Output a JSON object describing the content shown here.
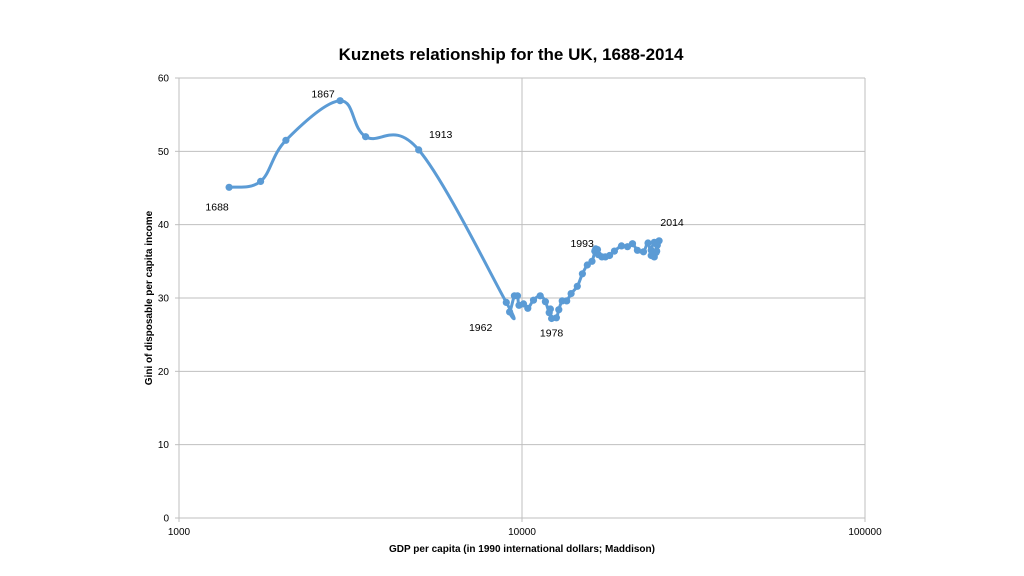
{
  "chart_data": {
    "type": "scatter",
    "title": "Kuznets relationship for the UK, 1688-2014",
    "xlabel": "GDP per capita (in 1990 international dollars; Maddison)",
    "ylabel": "Gini of disposable per capita income",
    "x_scale": "log",
    "xlim": [
      1000,
      100000
    ],
    "ylim": [
      0,
      60
    ],
    "x_ticks": [
      1000,
      10000,
      100000
    ],
    "x_tick_labels": [
      "1000",
      "10000",
      "100000"
    ],
    "y_ticks": [
      0,
      10,
      20,
      30,
      40,
      50,
      60
    ],
    "y_tick_labels": [
      "0",
      "10",
      "20",
      "30",
      "40",
      "50",
      "60"
    ],
    "grid": true,
    "legend": "none",
    "series_color": "#5b9bd5",
    "series": [
      {
        "x": [
          1400,
          1730,
          2050,
          2950,
          3500,
          5000,
          9000,
          9200,
          9500,
          9700,
          9800,
          10100,
          10400,
          10800,
          11300,
          11700,
          12000,
          12100,
          12200,
          12600,
          12800,
          13100,
          13500,
          13900,
          14500,
          15000,
          15500,
          16000,
          16400,
          16600,
          16300,
          16700,
          17100,
          17500,
          18000,
          18600,
          19500,
          20300,
          21000,
          21700,
          22600,
          23300,
          23800,
          24300,
          24600,
          24800,
          24300,
          23800,
          24100,
          24700,
          25100
        ],
        "y": [
          45.1,
          45.9,
          51.5,
          56.9,
          52.0,
          50.2,
          29.4,
          28.1,
          30.3,
          30.3,
          29.0,
          29.2,
          28.6,
          29.7,
          30.3,
          29.5,
          28.0,
          28.5,
          27.2,
          27.3,
          28.4,
          29.6,
          29.6,
          30.6,
          31.6,
          33.3,
          34.5,
          35.0,
          36.7,
          36.6,
          36.4,
          35.9,
          35.6,
          35.6,
          35.8,
          36.4,
          37.1,
          37.0,
          37.4,
          36.5,
          36.3,
          37.5,
          35.8,
          35.6,
          36.2,
          37.2,
          37.6,
          36.5,
          36.1,
          36.4,
          37.8
        ]
      }
    ],
    "annotations": [
      {
        "text": "1867",
        "x": 2950,
        "y": 56.9,
        "pos": "above"
      },
      {
        "text": "1913",
        "x": 5000,
        "y": 50.2,
        "pos": "above-right"
      },
      {
        "text": "1688",
        "x": 1400,
        "y": 45.1,
        "pos": "below"
      },
      {
        "text": "1962",
        "x": 9000,
        "y": 28.1,
        "pos": "below-left"
      },
      {
        "text": "1978",
        "x": 12200,
        "y": 27.2,
        "pos": "below"
      },
      {
        "text": "1993",
        "x": 16300,
        "y": 36.7,
        "pos": "left"
      },
      {
        "text": "2014",
        "x": 25100,
        "y": 37.8,
        "pos": "above"
      }
    ]
  }
}
